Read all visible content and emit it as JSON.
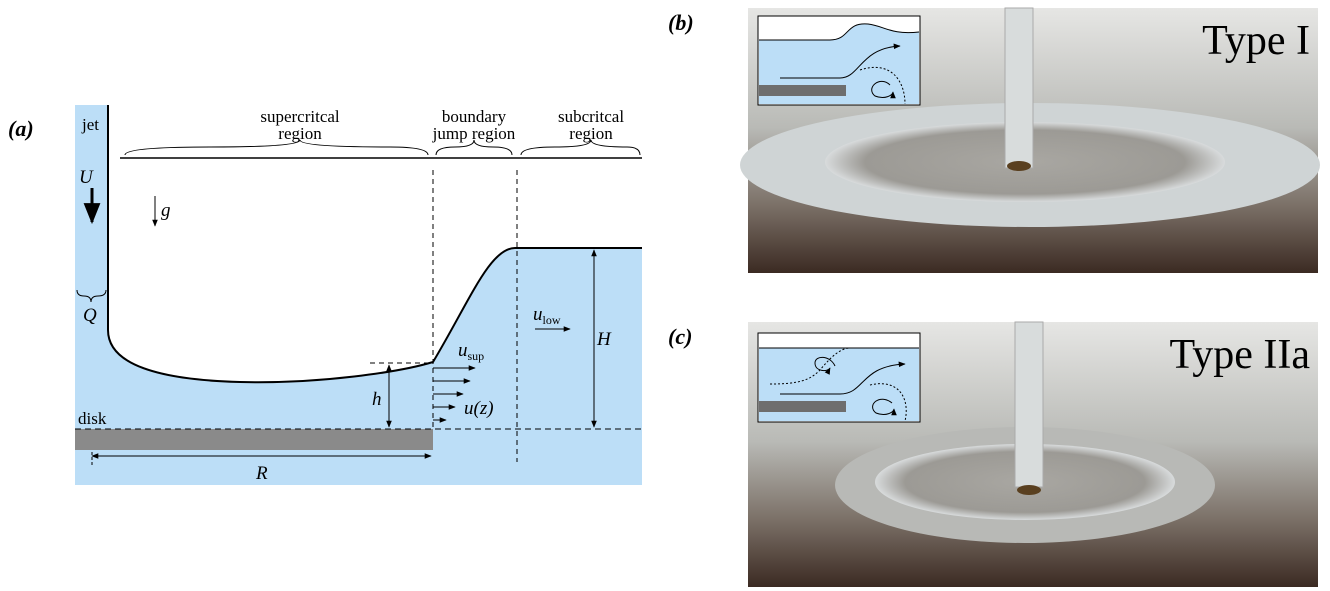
{
  "panels": {
    "a": {
      "label": "(a)",
      "jet": "jet",
      "U": "U",
      "g": "g",
      "Q": "Q",
      "regions": [
        {
          "lines": [
            "supercritcal",
            "region"
          ]
        },
        {
          "lines": [
            "boundary",
            "jump region"
          ]
        },
        {
          "lines": [
            "subcritcal",
            "region"
          ]
        }
      ],
      "u_sup": {
        "symbol": "u",
        "subscript": "sup"
      },
      "u_low": {
        "symbol": "u",
        "subscript": "low"
      },
      "u_z": "u(z)",
      "H": "H",
      "h": "h",
      "R": "R",
      "disk": "disk"
    },
    "b": {
      "label": "(b)",
      "title": "Type I"
    },
    "c": {
      "label": "(c)",
      "title": "Type IIa"
    }
  }
}
